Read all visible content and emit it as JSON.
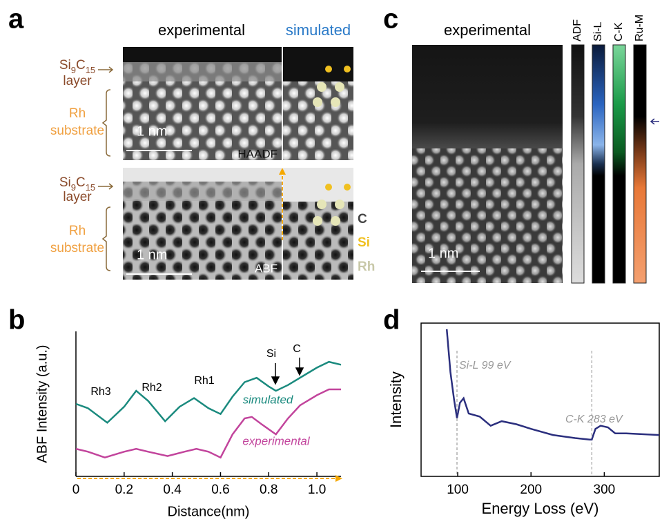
{
  "panels": {
    "a": {
      "label": "a",
      "experimental": "experimental",
      "simulated": "simulated",
      "formula": [
        "Si",
        "9",
        "C",
        "15"
      ],
      "layer": "layer",
      "rh": "Rh",
      "substrate": "substrate",
      "scale": "1 nm",
      "haadf": "HAADF",
      "abf": "ABF",
      "legend": [
        "C",
        "Si",
        "Rh"
      ]
    },
    "c": {
      "label": "c",
      "experimental": "experimental",
      "scale": "1 nm",
      "maps": [
        "ADF",
        "Si-L",
        "C-K",
        "Ru-M"
      ]
    },
    "b": {
      "label": "b"
    },
    "d": {
      "label": "d"
    }
  },
  "chart_data": [
    {
      "type": "line",
      "x_label": "Distance(nm)",
      "y_label": "ABF Intensity (a.u.)",
      "series": [
        {
          "name": "simulated",
          "color": "#1a8a7e",
          "x": [
            0,
            0.05,
            0.13,
            0.2,
            0.25,
            0.3,
            0.37,
            0.43,
            0.49,
            0.55,
            0.6,
            0.65,
            0.7,
            0.75,
            0.8,
            0.83,
            0.88,
            0.95,
            1.0,
            1.05,
            1.1
          ],
          "values": [
            0.5,
            0.47,
            0.37,
            0.48,
            0.59,
            0.52,
            0.38,
            0.48,
            0.54,
            0.47,
            0.43,
            0.55,
            0.65,
            0.68,
            0.62,
            0.59,
            0.63,
            0.7,
            0.75,
            0.79,
            0.77
          ]
        },
        {
          "name": "experimental",
          "color": "#c2449c",
          "x": [
            0,
            0.05,
            0.12,
            0.2,
            0.25,
            0.3,
            0.38,
            0.45,
            0.5,
            0.55,
            0.6,
            0.65,
            0.7,
            0.73,
            0.77,
            0.83,
            0.88,
            0.93,
            1.0,
            1.05,
            1.1
          ],
          "values": [
            0.19,
            0.17,
            0.13,
            0.17,
            0.19,
            0.17,
            0.14,
            0.17,
            0.19,
            0.17,
            0.13,
            0.29,
            0.4,
            0.41,
            0.36,
            0.29,
            0.4,
            0.49,
            0.56,
            0.6,
            0.6
          ]
        }
      ],
      "xlim": [
        0,
        1.1
      ],
      "ylim": [
        0,
        1
      ],
      "xticks": [
        0,
        0.2,
        0.4,
        0.6,
        0.8,
        {
          "value": 1,
          "label": "1.0"
        }
      ],
      "frame": false,
      "annotations": [
        "Rh3",
        "Rh2",
        "Rh1",
        "Si",
        "C"
      ]
    },
    {
      "type": "line",
      "x_label": "Energy Loss (eV)",
      "y_label": "Intensity",
      "series": [
        {
          "color": "#2b2f7e",
          "x": [
            85,
            90,
            95,
            99,
            103,
            108,
            115,
            130,
            145,
            160,
            180,
            200,
            230,
            260,
            280,
            283,
            288,
            295,
            305,
            315,
            330,
            375
          ],
          "values": [
            0.96,
            0.68,
            0.5,
            0.38,
            0.48,
            0.51,
            0.41,
            0.39,
            0.33,
            0.36,
            0.34,
            0.31,
            0.27,
            0.25,
            0.24,
            0.24,
            0.31,
            0.33,
            0.32,
            0.28,
            0.28,
            0.27
          ]
        }
      ],
      "xlim": [
        50,
        375
      ],
      "ylim": [
        0,
        1
      ],
      "xticks": [
        100,
        200,
        300
      ],
      "frame": true,
      "markers": [
        {
          "label": "Si-L 99 eV",
          "x": 99
        },
        {
          "label": "C-K 283 eV",
          "x": 283
        }
      ]
    }
  ]
}
